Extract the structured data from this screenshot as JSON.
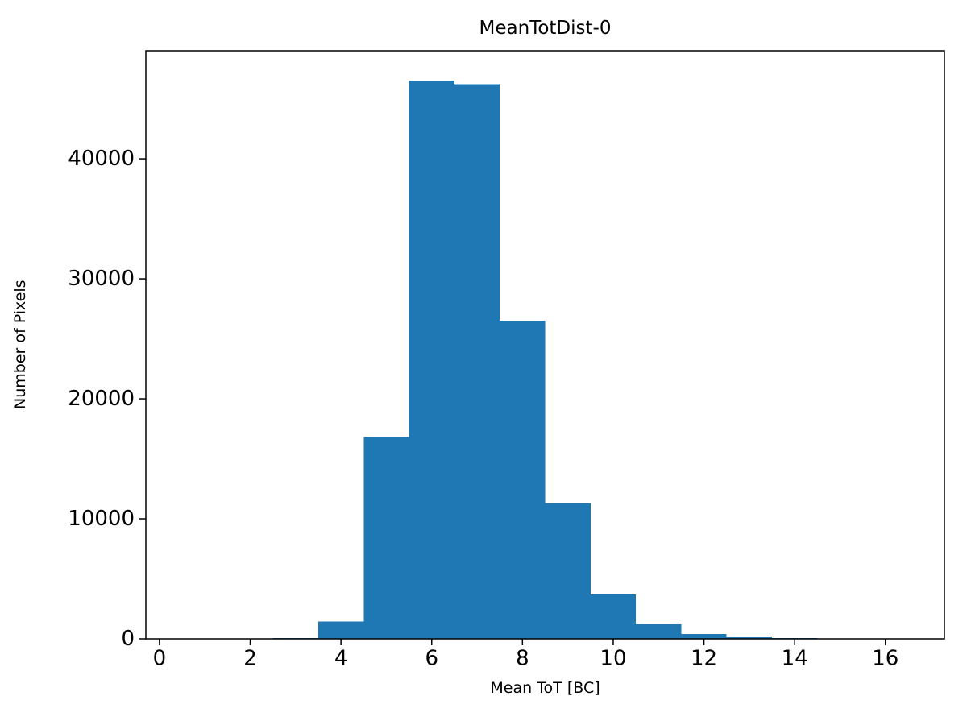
{
  "figure": {
    "title": "MeanTotDist-0",
    "xlabel": "Mean ToT [BC]",
    "ylabel": "Number of Pixels"
  },
  "chart_data": {
    "type": "bar",
    "title": "MeanTotDist-0",
    "xlabel": "Mean ToT [BC]",
    "ylabel": "Number of Pixels",
    "bar_color": "#1f77b4",
    "bin_edges": [
      2.5,
      3.5,
      4.5,
      5.5,
      6.5,
      7.5,
      8.5,
      9.5,
      10.5,
      11.5,
      12.5,
      13.5,
      14.5
    ],
    "counts": [
      80,
      1450,
      16800,
      46500,
      46200,
      26500,
      11300,
      3700,
      1200,
      400,
      150,
      60
    ],
    "xlim": [
      -0.3,
      17.3
    ],
    "ylim": [
      0,
      49000
    ],
    "xticks": [
      0,
      2,
      4,
      6,
      8,
      10,
      12,
      14,
      16
    ],
    "yticks": [
      0,
      10000,
      20000,
      30000,
      40000
    ],
    "grid": false,
    "legend": null
  }
}
